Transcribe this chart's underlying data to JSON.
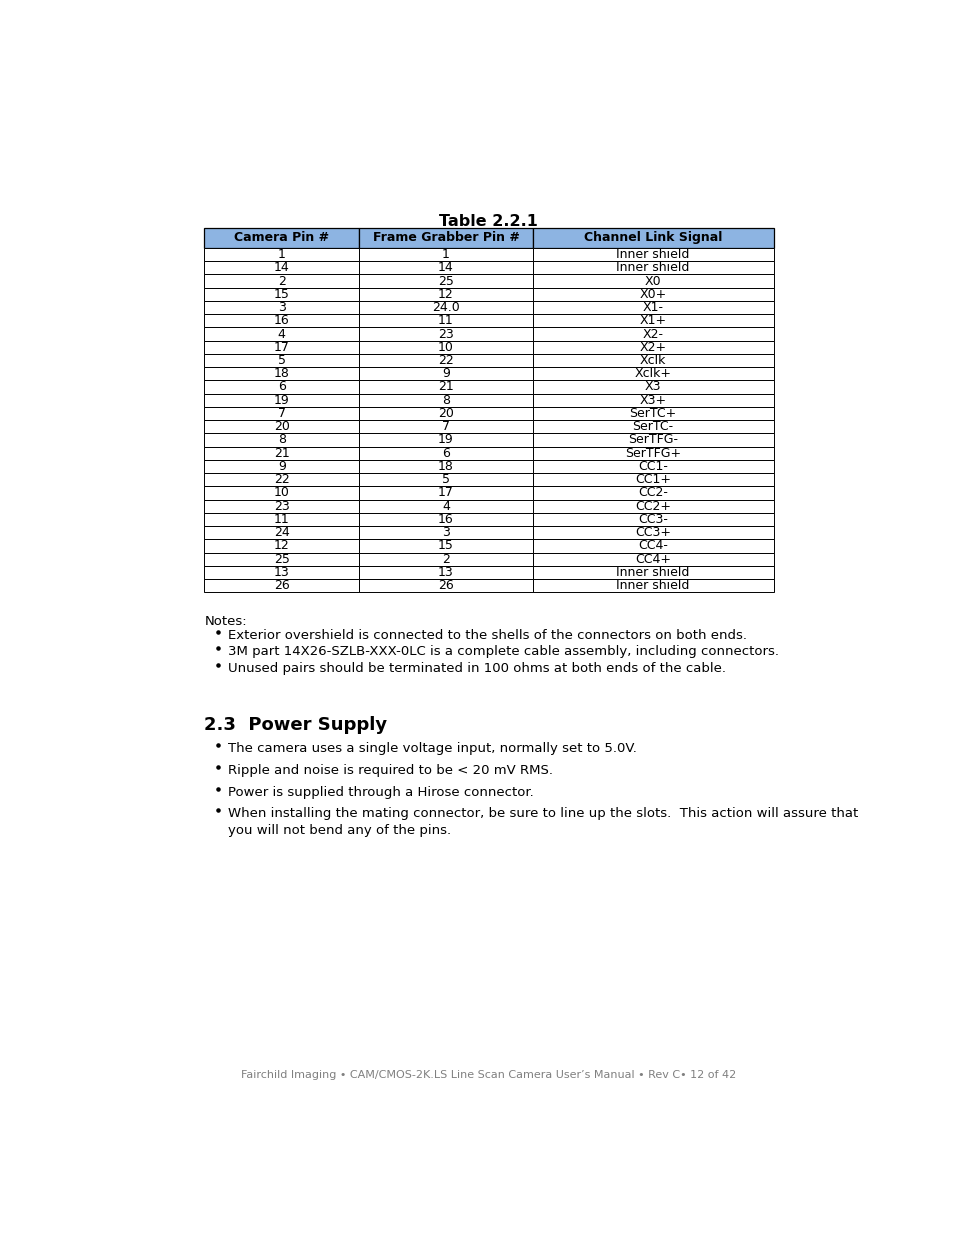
{
  "title": "Table 2.2.1",
  "headers": [
    "Camera Pin #",
    "Frame Grabber Pin #",
    "Channel Link Signal"
  ],
  "rows": [
    [
      "1",
      "1",
      "Inner shield"
    ],
    [
      "14",
      "14",
      "Inner shield"
    ],
    [
      "2",
      "25",
      "X0"
    ],
    [
      "15",
      "12",
      "X0+"
    ],
    [
      "3",
      "24.0",
      "X1-"
    ],
    [
      "16",
      "11",
      "X1+"
    ],
    [
      "4",
      "23",
      "X2-"
    ],
    [
      "17",
      "10",
      "X2+"
    ],
    [
      "5",
      "22",
      "Xclk"
    ],
    [
      "18",
      "9",
      "Xclk+"
    ],
    [
      "6",
      "21",
      "X3"
    ],
    [
      "19",
      "8",
      "X3+"
    ],
    [
      "7",
      "20",
      "SerTC+"
    ],
    [
      "20",
      "7",
      "SerTC-"
    ],
    [
      "8",
      "19",
      "SerTFG-"
    ],
    [
      "21",
      "6",
      "SerTFG+"
    ],
    [
      "9",
      "18",
      "CC1-"
    ],
    [
      "22",
      "5",
      "CC1+"
    ],
    [
      "10",
      "17",
      "CC2-"
    ],
    [
      "23",
      "4",
      "CC2+"
    ],
    [
      "11",
      "16",
      "CC3-"
    ],
    [
      "24",
      "3",
      "CC3+"
    ],
    [
      "12",
      "15",
      "CC4-"
    ],
    [
      "25",
      "2",
      "CC4+"
    ],
    [
      "13",
      "13",
      "Inner shield"
    ],
    [
      "26",
      "26",
      "Inner shield"
    ]
  ],
  "header_bg_color": "#8DB4E2",
  "header_text_color": "#000000",
  "row_bg_color": "#FFFFFF",
  "border_color": "#000000",
  "notes_title": "Notes:",
  "notes_bullets": [
    "Exterior overshield is connected to the shells of the connectors on both ends.",
    "3M part 14X26-SZLB-XXX-0LC is a complete cable assembly, including connectors.",
    "Unused pairs should be terminated in 100 ohms at both ends of the cable."
  ],
  "section_title": "2.3  Power Supply",
  "section_bullets": [
    "The camera uses a single voltage input, normally set to 5.0V.",
    "Ripple and noise is required to be < 20 mV RMS.",
    "Power is supplied through a Hirose connector.",
    "When installing the mating connector, be sure to line up the slots.  This action will assure that\nyou will not bend any of the pins."
  ],
  "footer": "Fairchild Imaging • CAM/CMOS-2K.LS Line Scan Camera User’s Manual • Rev C• 12 of 42",
  "bg_color": "#FFFFFF",
  "page_width": 9.54,
  "page_height": 12.35
}
